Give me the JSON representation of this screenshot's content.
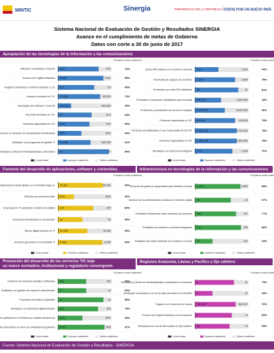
{
  "header": {
    "logos": [
      "MINTIC",
      "Sinergia",
      "PRESIDENCIA DE LA REPÚBLICA",
      "TODOS POR UN NUEVO PAÍS"
    ],
    "title": [
      "Sistema Nacional de Evaluación de Gestión y Resultados SINERGIA",
      "Avance en el cumplimiento de metas de Gobierno",
      "Datos con corte a 30 de junio de 2017"
    ]
  },
  "legend": [
    "Línea base",
    "Avance cuatrienio",
    "Meta cuatrienio"
  ],
  "pct_header": "% Avance meta cuatrienio",
  "footer": "Fuente: Sistema Nacional de Evaluación de Gestión y Resultados - SINERGIA",
  "panels": [
    {
      "title": "Apropiación de las tecnologías de la información y las comunicaciones",
      "color": "#3f7fc4",
      "rows": [
        {
          "label": "MIPymes conectadas a Internet",
          "value": "62%",
          "target": "70%",
          "pct": 76,
          "pct_label": "76%"
        },
        {
          "label": "Kioscos vive digital instalados",
          "value": "6.546",
          "target": "7.621",
          "pct": 85,
          "pct_label": "85%"
        },
        {
          "label": "Hogares conectados a Internet (estratos 1 y 2)",
          "value": "2,3",
          "target": "2,8",
          "pct": 68,
          "pct_label": "68%"
        },
        {
          "label": "Usuarios formados en TIC",
          "value": "75.650",
          "target": "95.000",
          "pct": 79,
          "pct_label": "79%"
        },
        {
          "label": "Descargas del Software Convertic",
          "value": "100.001",
          "target": "400.000",
          "pct": 25,
          "pct_label": "25%"
        },
        {
          "label": "Docentes formados en TIC",
          "value": "9,7",
          "target": "15,3",
          "pct": 63,
          "pct_label": "63%"
        },
        {
          "label": "Personas capacitadas en TIC",
          "value": "49%",
          "target": "74%",
          "pct": 59,
          "pct_label": "59%"
        },
        {
          "label": "Personas en situación de discapacidad beneficiadas",
          "value": "48%",
          "target": "93%",
          "pct": 44,
          "pct_label": "44%"
        },
        {
          "label": "Entidades con programas de gestión TI",
          "value": "61.080",
          "target": "100.000",
          "pct": 61,
          "pct_label": "61%"
        },
        {
          "label": "Municipios y Áreas No Municipalizadas conectados",
          "value": "73",
          "target": "77",
          "pct": 95,
          "pct_label": "95%"
        }
      ]
    },
    {
      "color": "#3f7fc4",
      "rows": [
        {
          "label": "Zonas Wifi públicas en el territorio nacional",
          "value": "544",
          "target": "1.000",
          "pct": 44,
          "pct_label": "44%"
        },
        {
          "label": "Terminales de equipos de escritorio",
          "value": "2.827",
          "target": "3.500",
          "pct": 75,
          "pct_label": "75%"
        },
        {
          "label": "Terminales por cada 100 habitantes",
          "value": "34",
          "target": "42",
          "pct": 81,
          "pct_label": "81%"
        },
        {
          "label": "Terminales Computador subsidiados para escuelas",
          "value": "980.411",
          "target": "2.000.000",
          "pct": 49,
          "pct_label": "49%"
        },
        {
          "label": "Profesores y estudiantes con acceso a equipos",
          "value": "4.500.000",
          "target": "8.000.000",
          "pct": 56,
          "pct_label": "56%"
        },
        {
          "label": "Personas capacitadas en TIC",
          "value": "89.908",
          "target": "120.000",
          "pct": 75,
          "pct_label": "75%"
        },
        {
          "label": "Personas sensibilizadas en uso responsable de las TIC",
          "value": "6.800.000",
          "target": "8.700.000",
          "pct": 78,
          "pct_label": "78%"
        },
        {
          "label": "Personas Capacitadas en TIC",
          "value": "1.951.998",
          "target": "2.500.000",
          "pct": 78,
          "pct_label": "78%"
        },
        {
          "label": "Municipios con centros tecnológicos",
          "value": "774",
          "target": "1.100",
          "pct": 70,
          "pct_label": "70%"
        }
      ]
    },
    {
      "title": "Fomento del desarrollo de aplicaciones, software y contenidos.",
      "color": "#e8c21c",
      "rows": [
        {
          "label": "Aplicaciones desarrolladas en la iniciativa Apps.co",
          "value": "75.812",
          "target": "90.000",
          "pct": 84,
          "pct_label": "84%"
        },
        {
          "label": "MIPyme con presencia Web",
          "value": "15%",
          "target": "50%",
          "pct": 30,
          "pct_label": "30%"
        },
        {
          "label": "Empresas de TI adoptando modelos de calidad",
          "value": "132",
          "target": "200",
          "pct": 66,
          "pct_label": "66%"
        },
        {
          "label": "Empresas beneficiadas en aceleración",
          "value": "23",
          "target": "50",
          "pct": 46,
          "pct_label": "46%"
        },
        {
          "label": "Talento digital formado en TI",
          "value": "41.226",
          "target": "75.000",
          "pct": 55,
          "pct_label": "55%"
        },
        {
          "label": "Empleos generados en la industria TI",
          "value": "4.962",
          "target": "6.000",
          "pct": 83,
          "pct_label": "83%"
        }
      ]
    },
    {
      "title": "Infraestructura en tecnologías de la información y las comunicaciones",
      "color": "#3fa34d",
      "rows": [
        {
          "label": "Servicios de gobierno capacitados para trámites en línea",
          "value": "4.070",
          "target": "4.800",
          "pct": 85,
          "pct_label": "85%"
        },
        {
          "label": "Sectores de la administración pública con Gobierno digital",
          "value": "16",
          "target": "24",
          "pct": 67,
          "pct_label": "67%"
        },
        {
          "label": "Entidades Públicas del orden nacional con servicios",
          "value": "152",
          "target": "197",
          "pct": 77,
          "pct_label": "77%"
        },
        {
          "label": "Entidades con trámites y servicios integrados",
          "value": "137",
          "target": "160",
          "pct": 86,
          "pct_label": "86%"
        },
        {
          "label": "Entidades del orden territorial con Gobierno en línea",
          "value": "70",
          "target": "210",
          "pct": 33,
          "pct_label": "33%"
        }
      ]
    },
    {
      "title": "Promoción del desarrollo de los servicios TIC bajo un marco normativo, institucional y regulatorio convergente.",
      "color": "#3fa34d",
      "rows": [
        {
          "label": "Cobertura de servicios postales certificados",
          "value": "401",
          "target": "763",
          "pct": 53,
          "pct_label": "53%"
        },
        {
          "label": "Entidades con gestión del espectro radioeléctrico",
          "value": "8",
          "target": "15",
          "pct": 53,
          "pct_label": "53%"
        },
        {
          "label": "Proyectos normativos expedidos",
          "value": "17",
          "target": "20",
          "pct": 85,
          "pct_label": "85%"
        },
        {
          "label": "Municipios con televisión digital terrestre",
          "value": "675",
          "target": "900",
          "pct": 75,
          "pct_label": "75%"
        },
        {
          "label": "MIPymes que participan en el Estado por medios electrónicos",
          "value": "23%",
          "target": "50%",
          "pct": 46,
          "pct_label": "46%"
        },
        {
          "label": "Ciudadanos que interactúan en línea con entidades de gobierno",
          "value": "61%",
          "target": "70%",
          "pct": 87,
          "pct_label": "87%"
        }
      ]
    },
    {
      "title": "Regiones Amazonía, Llanos y Pacífico y Eje cafetero",
      "color": "#c43fae",
      "rows": [
        {
          "label": "Municipios y Áreas No Municipalizadas conectados en Amazonía",
          "value": "8",
          "target": "11",
          "pct": 73,
          "pct_label": "73%"
        },
        {
          "label": "Municipios conectados a la red de alta velocidad en el Pacífico",
          "value": "4",
          "target": "12",
          "pct": 33,
          "pct_label": "33%"
        },
        {
          "label": "Hogares con Conexión en Llanos",
          "value": "396.153",
          "target": "524.247",
          "pct": 76,
          "pct_label": "76%"
        },
        {
          "label": "Puntos Vive Digital instalados en la Amazonía",
          "value": "9",
          "target": "13",
          "pct": 69,
          "pct_label": "69%"
        },
        {
          "label": "Municipios con red de fibra óptica en Eje cafetero",
          "value": "15",
          "target": "23",
          "pct": 65,
          "pct_label": "65%"
        }
      ]
    }
  ]
}
